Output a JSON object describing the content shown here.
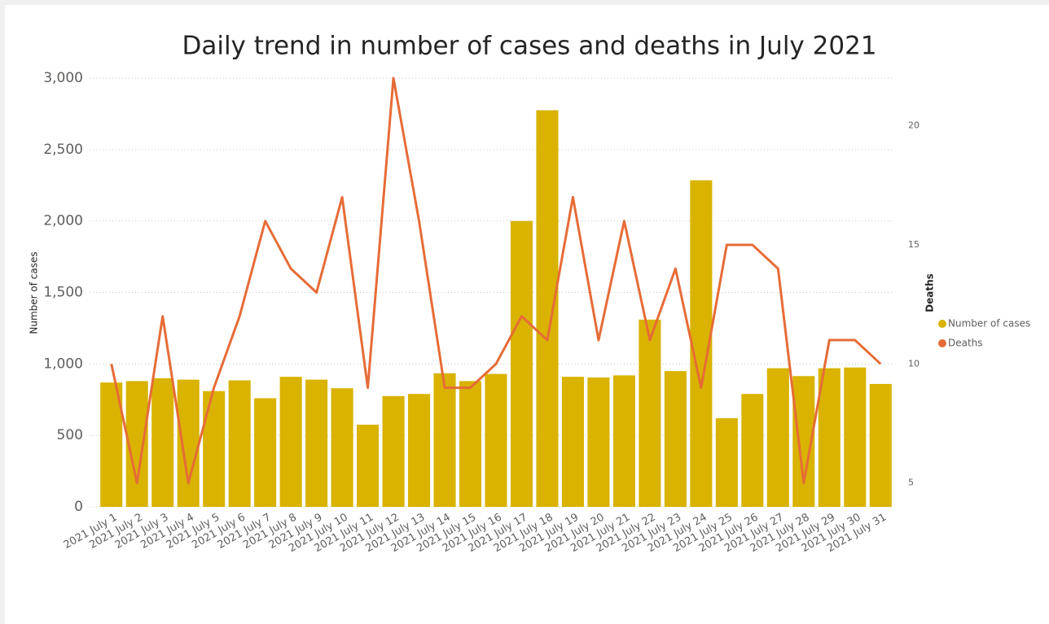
{
  "chart_data": {
    "type": "bar-line",
    "title": "Daily trend in number of cases and deaths in July 2021",
    "y_label": "Number of cases",
    "y2_label": "Deaths",
    "categories": [
      "2021 July 1",
      "2021 July 2",
      "2021 July 3",
      "2021 July 4",
      "2021 July 5",
      "2021 July 6",
      "2021 July 7",
      "2021 July 8",
      "2021 July 9",
      "2021 July 10",
      "2021 July 11",
      "2021 July 12",
      "2021 July 13",
      "2021 July 14",
      "2021 July 15",
      "2021 July 16",
      "2021 July 17",
      "2021 July 18",
      "2021 July 19",
      "2021 July 20",
      "2021 July 21",
      "2021 July 22",
      "2021 July 23",
      "2021 July 24",
      "2021 July 25",
      "2021 July 26",
      "2021 July 27",
      "2021 July 28",
      "2021 July 29",
      "2021 July 30",
      "2021 July 31"
    ],
    "series": [
      {
        "name": "Number of cases",
        "type": "bar",
        "color": "#D9B300",
        "axis": "y",
        "values": [
          870,
          880,
          900,
          890,
          810,
          885,
          760,
          910,
          890,
          830,
          575,
          775,
          790,
          935,
          880,
          930,
          2000,
          2775,
          910,
          905,
          920,
          1310,
          950,
          2285,
          620,
          790,
          970,
          915,
          970,
          975,
          860
        ]
      },
      {
        "name": "Deaths",
        "type": "line",
        "color": "#E66C37",
        "axis": "y2",
        "values": [
          10,
          5,
          12,
          5,
          9,
          12,
          16,
          14,
          13,
          17,
          9,
          22,
          16,
          9,
          9,
          10,
          12,
          11,
          17,
          11,
          16,
          11,
          14,
          9,
          15,
          15,
          14,
          5,
          11,
          11,
          10
        ]
      }
    ],
    "ylim": [
      0,
      3000
    ],
    "yticks": [
      0,
      500,
      {
        "value": 1000,
        "label": "1,000"
      },
      {
        "value": 1500,
        "label": "1,500"
      },
      {
        "value": 2000,
        "label": "2,000"
      },
      {
        "value": 2500,
        "label": "2,500"
      },
      {
        "value": 3000,
        "label": "3,000"
      }
    ],
    "y2lim": [
      4,
      22
    ],
    "y2ticks": [
      5,
      10,
      15,
      20
    ],
    "grid": true,
    "legend": "right"
  }
}
